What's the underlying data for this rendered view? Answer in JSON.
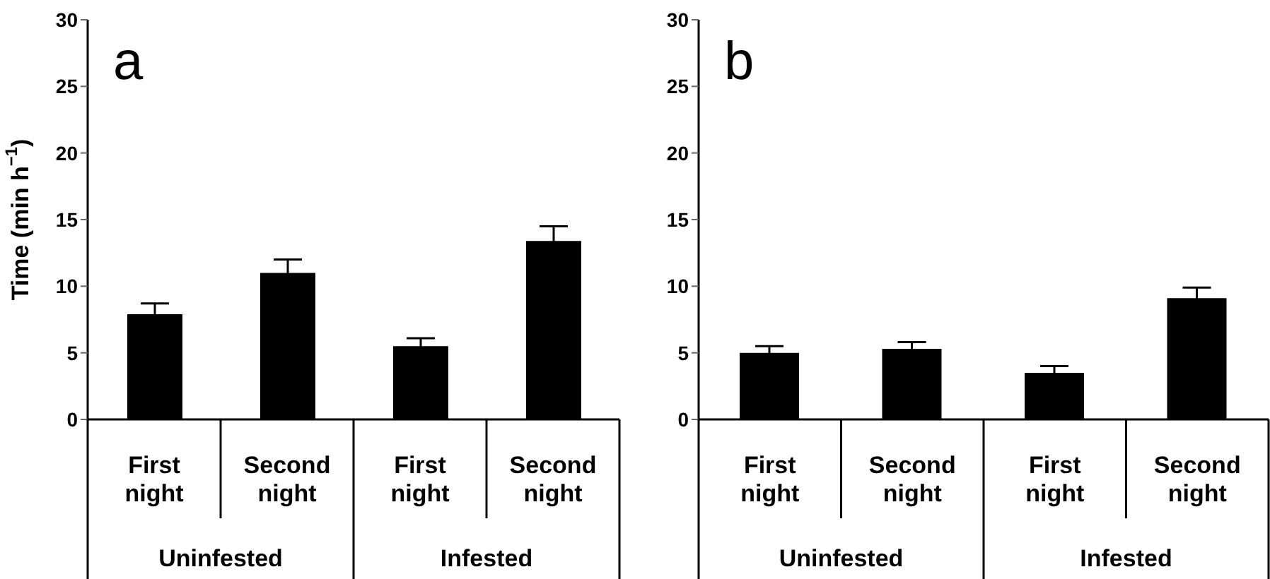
{
  "chart_data": [
    {
      "type": "bar",
      "ylabel": "Time (min h$^{−1}$)",
      "categories": [
        "First night",
        "Second night",
        "First night",
        "Second night"
      ],
      "values": [
        7.9,
        11.0,
        5.5,
        13.4
      ],
      "errors": [
        0.8,
        1.0,
        0.6,
        1.1
      ],
      "color": "#000000",
      "ylim": [
        0,
        30
      ],
      "yticks": [
        0,
        5,
        10,
        15,
        20,
        25,
        30
      ],
      "grid": false,
      "annotations": [
        "a",
        "Uninfested",
        "Infested"
      ]
    },
    {
      "type": "bar",
      "categories": [
        "First night",
        "Second night",
        "First night",
        "Second night"
      ],
      "values": [
        5.0,
        5.3,
        3.5,
        9.1
      ],
      "errors": [
        0.5,
        0.5,
        0.5,
        0.8
      ],
      "color": "#000000",
      "ylim": [
        0,
        30
      ],
      "yticks": [
        0,
        5,
        10,
        15,
        20,
        25,
        30
      ],
      "grid": false,
      "annotations": [
        "b",
        "Uninfested",
        "Infested"
      ]
    }
  ]
}
